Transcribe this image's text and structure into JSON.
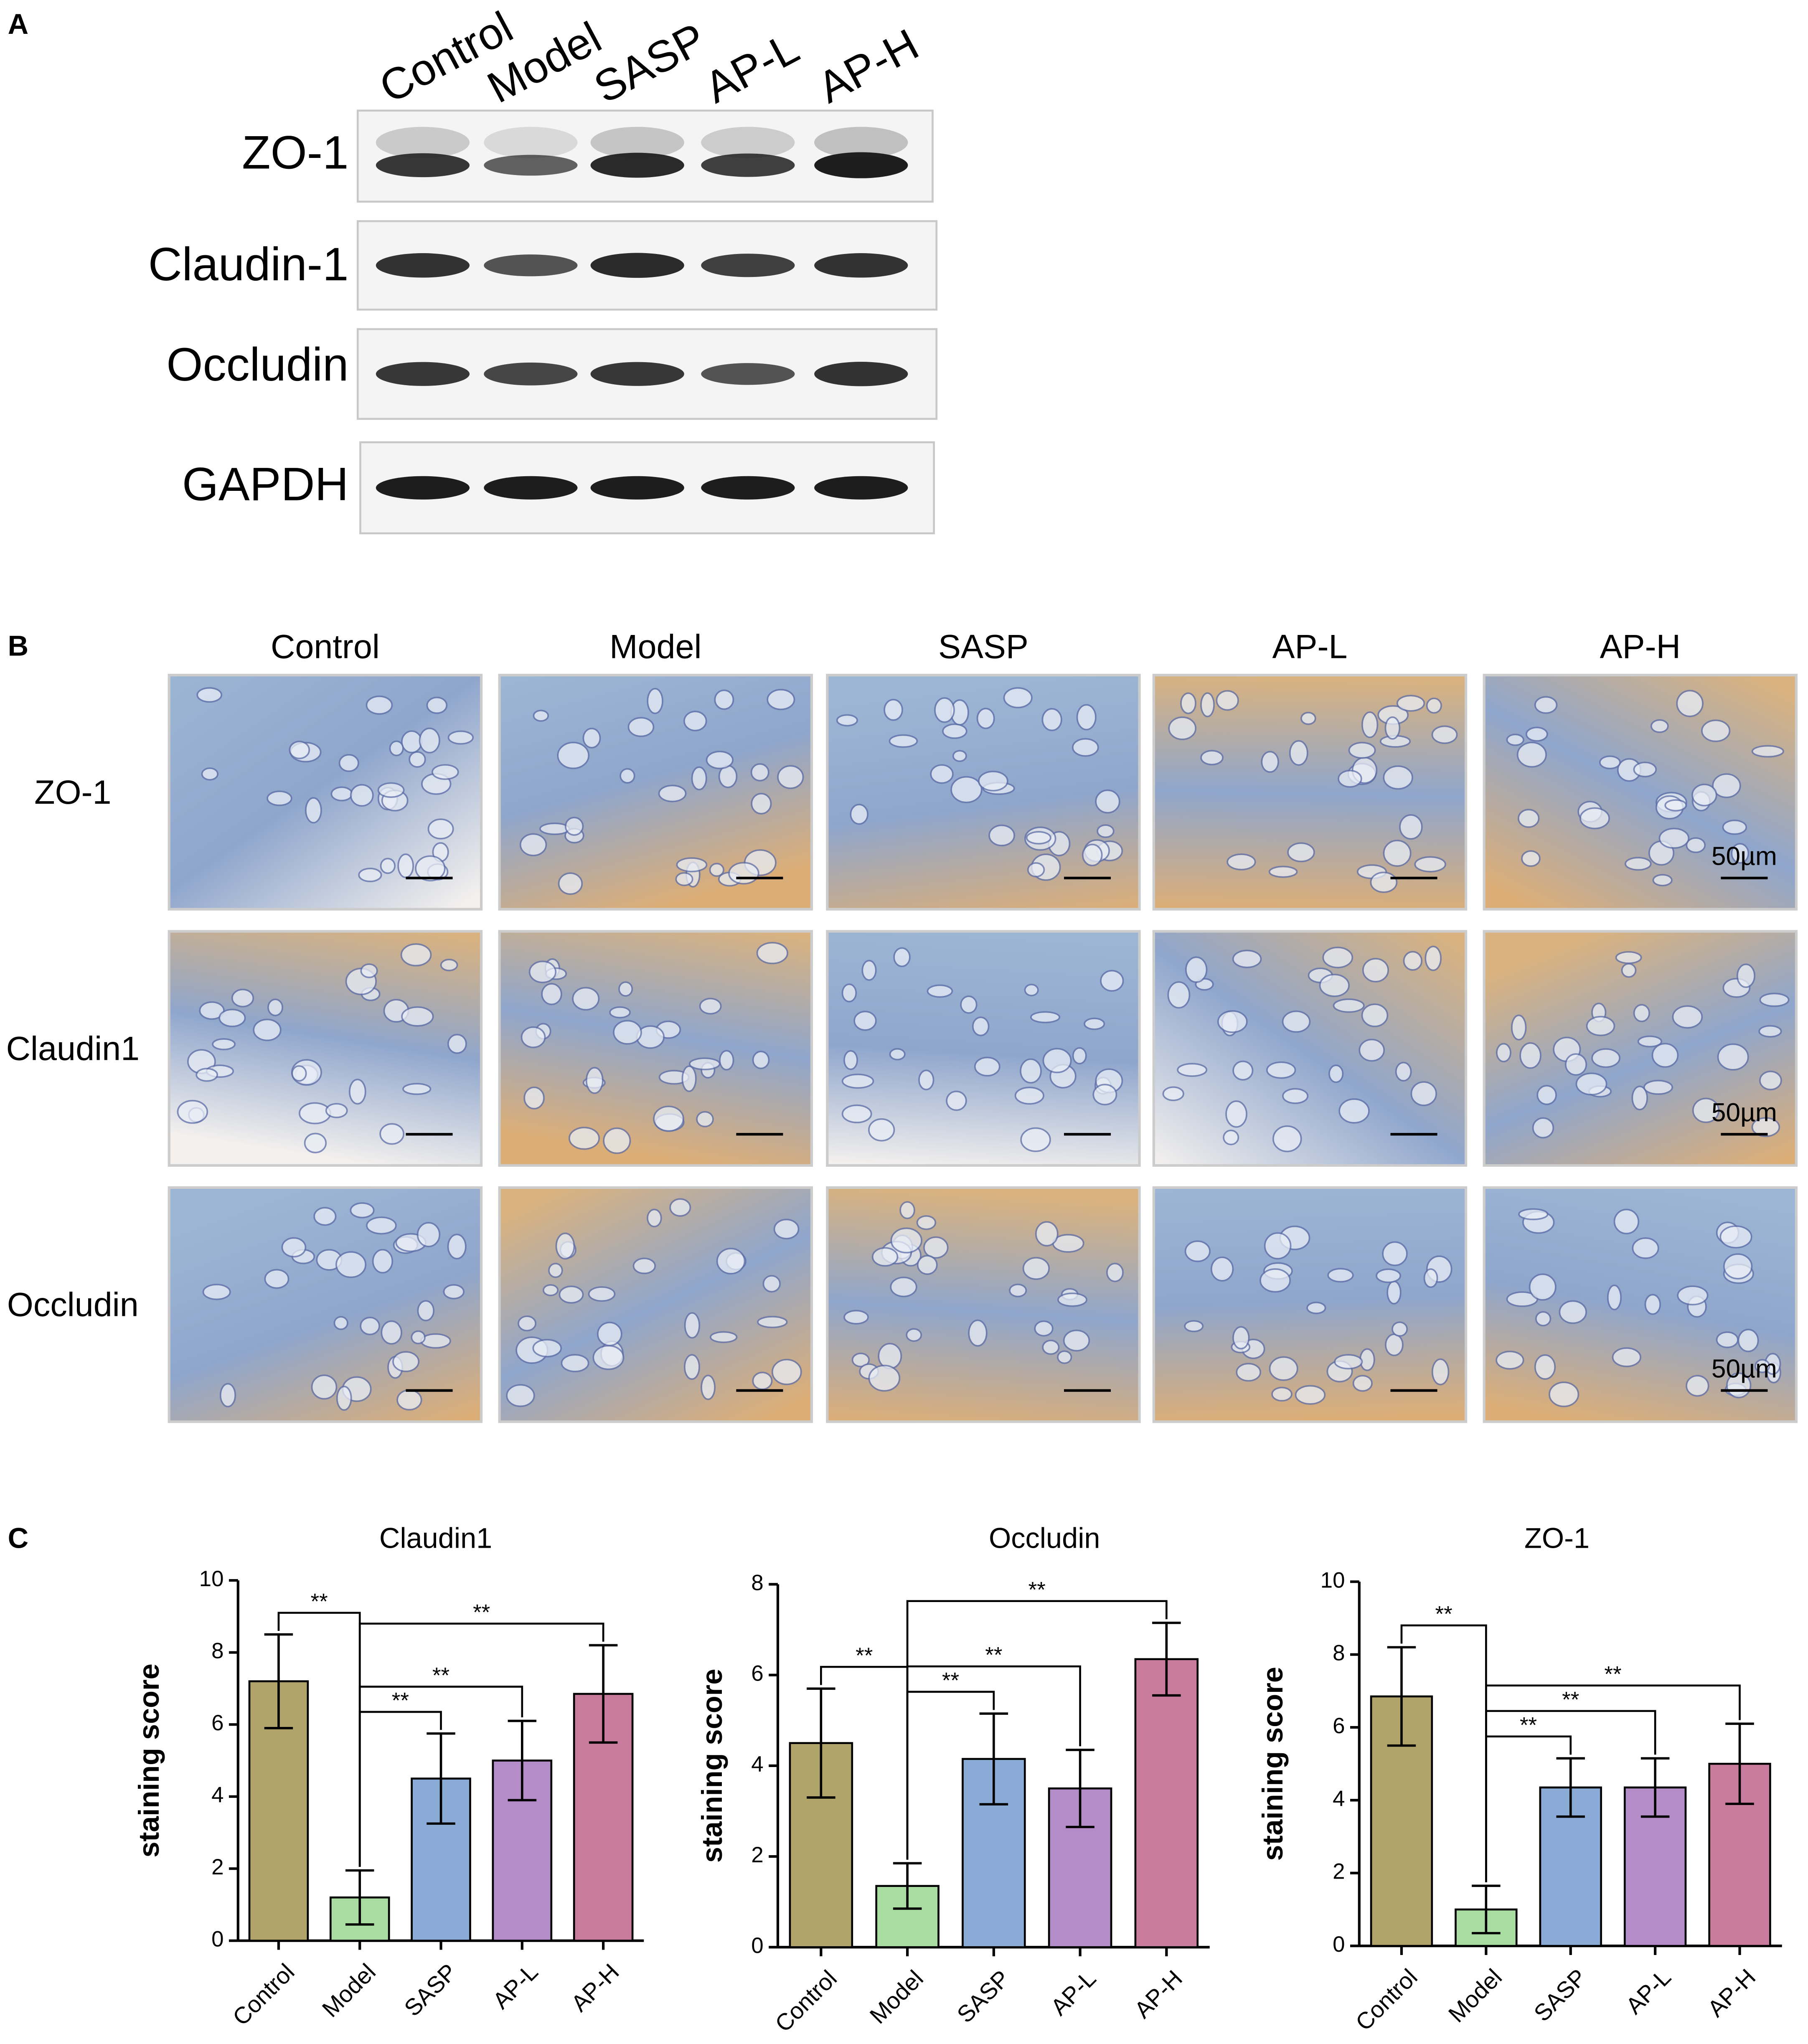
{
  "panel_a": {
    "label": "A",
    "lanes": [
      "Control",
      "Model",
      "SASP",
      "AP-L",
      "AP-H"
    ],
    "proteins": [
      "ZO-1",
      "Claudin-1",
      "Occludin",
      "GAPDH"
    ]
  },
  "panel_b": {
    "label": "B",
    "columns": [
      "Control",
      "Model",
      "SASP",
      "AP-L",
      "AP-H"
    ],
    "rows": [
      "ZO-1",
      "Claudin1",
      "Occludin"
    ],
    "scale_bar": "50µm"
  },
  "panel_c": {
    "label": "C"
  },
  "chart_data": [
    {
      "type": "bar",
      "title": "Claudin1",
      "ylabel": "staining score",
      "categories": [
        "Control",
        "Model",
        "SASP",
        "AP-L",
        "AP-H"
      ],
      "values": [
        7.2,
        1.2,
        4.5,
        5.0,
        6.85
      ],
      "errors": [
        1.3,
        0.75,
        1.25,
        1.1,
        1.35
      ],
      "colors": [
        "#b0a46a",
        "#a8dca0",
        "#8aabd6",
        "#b48cc8",
        "#c87b9c"
      ],
      "ylim": [
        0,
        10
      ],
      "yticks": [
        0,
        2,
        4,
        6,
        8,
        10
      ],
      "annotations": [
        "**",
        "**",
        "**",
        "**"
      ]
    },
    {
      "type": "bar",
      "title": "Occludin",
      "ylabel": "staining score",
      "categories": [
        "Control",
        "Model",
        "SASP",
        "AP-L",
        "AP-H"
      ],
      "values": [
        4.5,
        1.35,
        4.15,
        3.5,
        6.35
      ],
      "errors": [
        1.2,
        0.5,
        1.0,
        0.85,
        0.8
      ],
      "colors": [
        "#b0a46a",
        "#a8dca0",
        "#8aabd6",
        "#b48cc8",
        "#c87b9c"
      ],
      "ylim": [
        0,
        8
      ],
      "yticks": [
        0,
        2,
        4,
        6,
        8
      ],
      "annotations": [
        "**",
        "**",
        "**",
        "**"
      ]
    },
    {
      "type": "bar",
      "title": "ZO-1",
      "ylabel": "staining score",
      "categories": [
        "Control",
        "Model",
        "SASP",
        "AP-L",
        "AP-H"
      ],
      "values": [
        6.85,
        1.0,
        4.35,
        4.35,
        5.0
      ],
      "errors": [
        1.35,
        0.65,
        0.8,
        0.8,
        1.1
      ],
      "colors": [
        "#b0a46a",
        "#a8dca0",
        "#8aabd6",
        "#b48cc8",
        "#c87b9c"
      ],
      "ylim": [
        0,
        10
      ],
      "yticks": [
        0,
        2,
        4,
        6,
        8,
        10
      ],
      "annotations": [
        "**",
        "**",
        "**",
        "**"
      ]
    }
  ]
}
